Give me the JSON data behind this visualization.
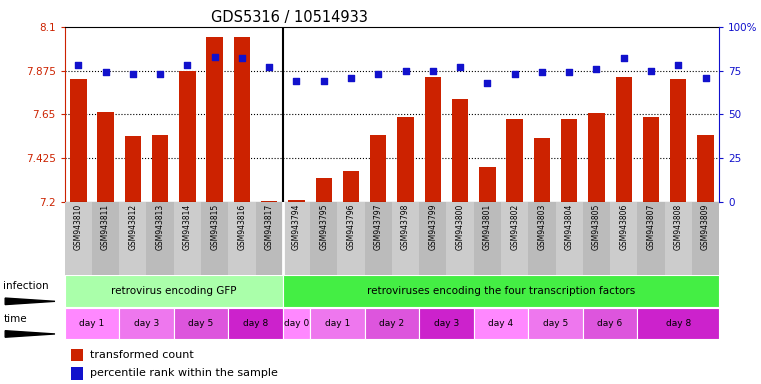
{
  "title": "GDS5316 / 10514933",
  "samples": [
    "GSM943810",
    "GSM943811",
    "GSM943812",
    "GSM943813",
    "GSM943814",
    "GSM943815",
    "GSM943816",
    "GSM943817",
    "GSM943794",
    "GSM943795",
    "GSM943796",
    "GSM943797",
    "GSM943798",
    "GSM943799",
    "GSM943800",
    "GSM943801",
    "GSM943802",
    "GSM943803",
    "GSM943804",
    "GSM943805",
    "GSM943806",
    "GSM943807",
    "GSM943808",
    "GSM943809"
  ],
  "bar_values": [
    7.83,
    7.66,
    7.54,
    7.545,
    7.875,
    8.05,
    8.05,
    7.205,
    7.21,
    7.32,
    7.36,
    7.545,
    7.635,
    7.84,
    7.73,
    7.38,
    7.625,
    7.53,
    7.625,
    7.655,
    7.84,
    7.635,
    7.83,
    7.545
  ],
  "percentile_values": [
    78,
    74,
    73,
    73,
    78,
    83,
    82,
    77,
    69,
    69,
    71,
    73,
    75,
    75,
    77,
    68,
    73,
    74,
    74,
    76,
    82,
    75,
    78,
    71
  ],
  "ylim_left": [
    7.2,
    8.1
  ],
  "ylim_right": [
    0,
    100
  ],
  "yticks_left": [
    7.2,
    7.425,
    7.65,
    7.875,
    8.1
  ],
  "ytick_labels_left": [
    "7.2",
    "7.425",
    "7.65",
    "7.875",
    "8.1"
  ],
  "yticks_right": [
    0,
    25,
    50,
    75,
    100
  ],
  "ytick_labels_right": [
    "0",
    "25",
    "50",
    "75",
    "100%"
  ],
  "bar_color": "#cc2200",
  "dot_color": "#1111cc",
  "infection_groups": [
    {
      "label": "retrovirus encoding GFP",
      "start": 0,
      "end": 8,
      "color": "#aaffaa"
    },
    {
      "label": "retroviruses encoding the four transcription factors",
      "start": 8,
      "end": 24,
      "color": "#44ee44"
    }
  ],
  "time_groups": [
    {
      "label": "day 1",
      "start": 0,
      "end": 2,
      "color": "#ff88ff"
    },
    {
      "label": "day 3",
      "start": 2,
      "end": 4,
      "color": "#ee77ee"
    },
    {
      "label": "day 5",
      "start": 4,
      "end": 6,
      "color": "#dd55dd"
    },
    {
      "label": "day 8",
      "start": 6,
      "end": 8,
      "color": "#cc22cc"
    },
    {
      "label": "day 0",
      "start": 8,
      "end": 9,
      "color": "#ff88ff"
    },
    {
      "label": "day 1",
      "start": 9,
      "end": 11,
      "color": "#ee77ee"
    },
    {
      "label": "day 2",
      "start": 11,
      "end": 13,
      "color": "#dd55dd"
    },
    {
      "label": "day 3",
      "start": 13,
      "end": 15,
      "color": "#cc22cc"
    },
    {
      "label": "day 4",
      "start": 15,
      "end": 17,
      "color": "#ff88ff"
    },
    {
      "label": "day 5",
      "start": 17,
      "end": 19,
      "color": "#ee77ee"
    },
    {
      "label": "day 6",
      "start": 19,
      "end": 21,
      "color": "#dd55dd"
    },
    {
      "label": "day 8",
      "start": 21,
      "end": 24,
      "color": "#cc22cc"
    }
  ],
  "legend_items": [
    {
      "label": "transformed count",
      "color": "#cc2200"
    },
    {
      "label": "percentile rank within the sample",
      "color": "#1111cc"
    }
  ],
  "separator_after": 7,
  "grid_dotted_values": [
    7.425,
    7.65,
    7.875
  ]
}
